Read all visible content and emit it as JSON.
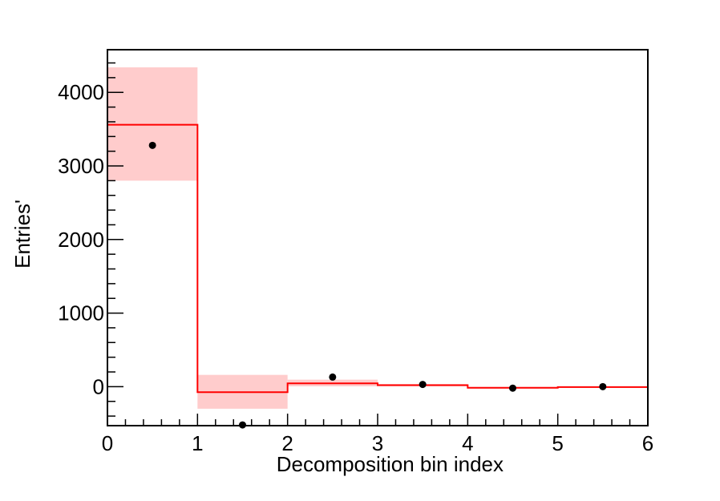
{
  "chart_data": {
    "type": "bar",
    "title": "",
    "xlabel": "Decomposition bin index",
    "ylabel": "Entries'",
    "xlim": [
      0,
      6
    ],
    "ylim": [
      -530,
      4580
    ],
    "x_ticks": [
      0,
      1,
      2,
      3,
      4,
      5,
      6
    ],
    "x_tick_labels": [
      "0",
      "1",
      "2",
      "3",
      "4",
      "5",
      "6"
    ],
    "y_ticks": [
      0,
      1000,
      2000,
      3000,
      4000
    ],
    "y_tick_labels": [
      "0",
      "1000",
      "2000",
      "3000",
      "4000"
    ],
    "grid": false,
    "legend": "none",
    "series": [
      {
        "style": "step-histogram-with-error-band",
        "color": "#ff0000",
        "band_color": "#ffcccc",
        "bins": [
          {
            "low": 0,
            "high": 1,
            "value": 3560,
            "band": [
              2800,
              4340
            ]
          },
          {
            "low": 1,
            "high": 2,
            "value": -75,
            "band": [
              -300,
              160
            ]
          },
          {
            "low": 2,
            "high": 3,
            "value": 45,
            "band": [
              5,
              95
            ]
          },
          {
            "low": 3,
            "high": 4,
            "value": 20,
            "band": [
              5,
              35
            ]
          },
          {
            "low": 4,
            "high": 5,
            "value": -15,
            "band": [
              -25,
              -5
            ]
          },
          {
            "low": 5,
            "high": 6,
            "value": -5,
            "band": [
              -12,
              2
            ]
          }
        ]
      },
      {
        "style": "markers",
        "color": "#000000",
        "points": [
          {
            "x": 0.5,
            "y": 3280
          },
          {
            "x": 1.5,
            "y": -520
          },
          {
            "x": 2.5,
            "y": 130
          },
          {
            "x": 3.5,
            "y": 30
          },
          {
            "x": 4.5,
            "y": -20
          },
          {
            "x": 5.5,
            "y": 0
          }
        ]
      }
    ]
  }
}
